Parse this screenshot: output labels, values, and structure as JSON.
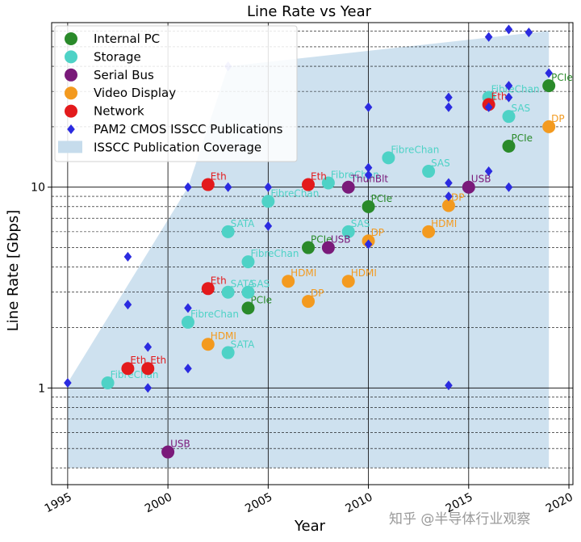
{
  "chart_data": {
    "type": "scatter",
    "title": "Line Rate vs Year",
    "xlabel": "Year",
    "ylabel": "Line Rate [Gbps]",
    "xlim": [
      1994.2,
      2020.2
    ],
    "ylim": [
      0.33,
      66
    ],
    "yscale": "log",
    "x_ticks": [
      1995,
      2000,
      2005,
      2010,
      2015,
      2020
    ],
    "x_tick_labels": [
      "1995",
      "2000",
      "2005",
      "2010",
      "2015",
      "2020"
    ],
    "y_major_ticks": [
      1,
      10
    ],
    "y_major_labels": [
      "1",
      "10"
    ],
    "grid": true,
    "legend_position": "top-left",
    "watermark": "知乎 @半导体行业观察",
    "series": [
      {
        "name": "Internal PC",
        "color": "#2a8a2a",
        "marker": "circle",
        "points": [
          {
            "x": 2004,
            "y": 2.5,
            "label": "PCIe"
          },
          {
            "x": 2007,
            "y": 5,
            "label": "PCIe"
          },
          {
            "x": 2010,
            "y": 8,
            "label": "PCIe"
          },
          {
            "x": 2017,
            "y": 16,
            "label": "PCIe"
          },
          {
            "x": 2019,
            "y": 32,
            "label": "PCIe"
          }
        ]
      },
      {
        "name": "Storage",
        "color": "#4ed2c6",
        "marker": "circle",
        "points": [
          {
            "x": 1997,
            "y": 1.06,
            "label": "FibreChan"
          },
          {
            "x": 2001,
            "y": 2.125,
            "label": "FibreChan"
          },
          {
            "x": 2003,
            "y": 1.5,
            "label": "SATA"
          },
          {
            "x": 2003,
            "y": 3,
            "label": "SATA"
          },
          {
            "x": 2004,
            "y": 3,
            "label": "SAS"
          },
          {
            "x": 2004,
            "y": 4.25,
            "label": "FibreChan"
          },
          {
            "x": 2005,
            "y": 8.5,
            "label": "FibreChan"
          },
          {
            "x": 2003,
            "y": 6,
            "label": "SATA"
          },
          {
            "x": 2008,
            "y": 10.5,
            "label": "FibreChan"
          },
          {
            "x": 2009,
            "y": 6,
            "label": "SAS"
          },
          {
            "x": 2011,
            "y": 14,
            "label": "FibreChan"
          },
          {
            "x": 2013,
            "y": 12,
            "label": "SAS"
          },
          {
            "x": 2016,
            "y": 28,
            "label": "FibreChan"
          },
          {
            "x": 2017,
            "y": 22.5,
            "label": "SAS"
          }
        ]
      },
      {
        "name": "Serial Bus",
        "color": "#7a1a7a",
        "marker": "circle",
        "points": [
          {
            "x": 2000,
            "y": 0.48,
            "label": "USB"
          },
          {
            "x": 2008,
            "y": 5,
            "label": "USB"
          },
          {
            "x": 2009,
            "y": 10,
            "label": "ThunBlt"
          },
          {
            "x": 2015,
            "y": 10,
            "label": "USB"
          }
        ]
      },
      {
        "name": "Video Display",
        "color": "#f39a1f",
        "marker": "circle",
        "points": [
          {
            "x": 2002,
            "y": 1.65,
            "label": "HDMI"
          },
          {
            "x": 2006,
            "y": 3.4,
            "label": "HDMI"
          },
          {
            "x": 2007,
            "y": 2.7,
            "label": "DP"
          },
          {
            "x": 2009,
            "y": 3.4,
            "label": "HDMI"
          },
          {
            "x": 2010,
            "y": 5.4,
            "label": "DP"
          },
          {
            "x": 2013,
            "y": 6,
            "label": "HDMI"
          },
          {
            "x": 2014,
            "y": 8.1,
            "label": "DP"
          },
          {
            "x": 2019,
            "y": 20,
            "label": "DP"
          }
        ]
      },
      {
        "name": "Network",
        "color": "#e31a1c",
        "marker": "circle",
        "points": [
          {
            "x": 1998,
            "y": 1.25,
            "label": "Eth"
          },
          {
            "x": 1999,
            "y": 1.25,
            "label": "Eth"
          },
          {
            "x": 2002,
            "y": 3.125,
            "label": "Eth"
          },
          {
            "x": 2002,
            "y": 10.3,
            "label": "Eth"
          },
          {
            "x": 2007,
            "y": 10.3,
            "label": "Eth"
          },
          {
            "x": 2016,
            "y": 25.8,
            "label": "Eth"
          }
        ]
      },
      {
        "name": "PAM2 CMOS ISSCC Publications",
        "color": "#2b2be0",
        "marker": "diamond",
        "points": [
          {
            "x": 1995,
            "y": 1.06
          },
          {
            "x": 1998,
            "y": 4.5
          },
          {
            "x": 1998,
            "y": 2.6
          },
          {
            "x": 1999,
            "y": 1.6
          },
          {
            "x": 1999,
            "y": 1.0
          },
          {
            "x": 2001,
            "y": 10
          },
          {
            "x": 2001,
            "y": 2.5
          },
          {
            "x": 2001,
            "y": 1.25
          },
          {
            "x": 2003,
            "y": 10
          },
          {
            "x": 2003,
            "y": 40,
            "faded": true
          },
          {
            "x": 2005,
            "y": 10
          },
          {
            "x": 2005,
            "y": 6.4
          },
          {
            "x": 2010,
            "y": 25
          },
          {
            "x": 2010,
            "y": 12.5
          },
          {
            "x": 2010,
            "y": 11.5
          },
          {
            "x": 2010,
            "y": 5.2
          },
          {
            "x": 2014,
            "y": 28
          },
          {
            "x": 2014,
            "y": 25
          },
          {
            "x": 2014,
            "y": 10.5
          },
          {
            "x": 2014,
            "y": 9
          },
          {
            "x": 2014,
            "y": 1.03
          },
          {
            "x": 2016,
            "y": 25
          },
          {
            "x": 2016,
            "y": 12
          },
          {
            "x": 2016,
            "y": 56
          },
          {
            "x": 2017,
            "y": 32
          },
          {
            "x": 2017,
            "y": 28
          },
          {
            "x": 2017,
            "y": 10
          },
          {
            "x": 2017,
            "y": 61
          },
          {
            "x": 2018,
            "y": 59
          },
          {
            "x": 2019,
            "y": 37
          }
        ]
      }
    ],
    "coverage": {
      "name": "ISSCC Publication Coverage",
      "color": "#c6dcec",
      "upper": [
        [
          1995,
          1.06
        ],
        [
          2001,
          10
        ],
        [
          2003,
          40
        ],
        [
          2019,
          60
        ]
      ],
      "lower_y": 0.4,
      "x_range": [
        1995,
        2019
      ]
    }
  }
}
